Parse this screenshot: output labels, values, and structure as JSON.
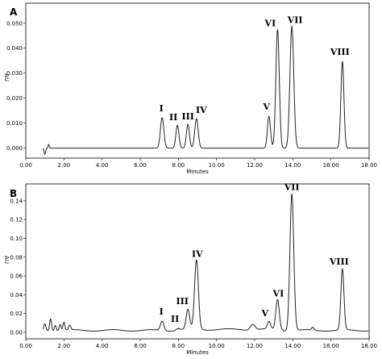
{
  "chart_data": [
    {
      "type": "line",
      "panel_label": "A",
      "xlabel": "Minutes",
      "ylabel": "AU",
      "xlim": [
        0,
        18
      ],
      "ylim": [
        -0.004,
        0.058
      ],
      "x_ticks": [
        0,
        2,
        4,
        6,
        8,
        10,
        12,
        14,
        16,
        18
      ],
      "x_tick_labels": [
        "0.00",
        "2.00",
        "4.00",
        "6.00",
        "8.00",
        "10.00",
        "12.00",
        "14.00",
        "16.00",
        "18.00"
      ],
      "y_ticks": [
        0,
        0.01,
        0.02,
        0.03,
        0.04,
        0.05
      ],
      "y_tick_labels": [
        "0.000",
        "0.010",
        "0.020",
        "0.030",
        "0.040",
        "0.050"
      ],
      "baseline": 0.0,
      "peaks": [
        {
          "label": "I",
          "x": 7.15,
          "y": 0.0122
        },
        {
          "label": "II",
          "x": 7.95,
          "y": 0.0092
        },
        {
          "label": "III",
          "x": 8.5,
          "y": 0.0095
        },
        {
          "label": "IV",
          "x": 8.95,
          "y": 0.0118
        },
        {
          "label": "V",
          "x": 12.75,
          "y": 0.0128
        },
        {
          "label": "VI",
          "x": 13.2,
          "y": 0.0475
        },
        {
          "label": "VII",
          "x": 13.95,
          "y": 0.0488
        },
        {
          "label": "VIII",
          "x": 16.6,
          "y": 0.0348
        }
      ]
    },
    {
      "type": "line",
      "panel_label": "B",
      "xlabel": "Minutes",
      "ylabel": "AU",
      "xlim": [
        0,
        18
      ],
      "ylim": [
        -0.007,
        0.158
      ],
      "x_ticks": [
        0,
        2,
        4,
        6,
        8,
        10,
        12,
        14,
        16,
        18
      ],
      "x_tick_labels": [
        "0.00",
        "2.00",
        "4.00",
        "6.00",
        "8.00",
        "10.00",
        "12.00",
        "14.00",
        "16.00",
        "18.00"
      ],
      "y_ticks": [
        0,
        0.02,
        0.04,
        0.06,
        0.08,
        0.1,
        0.12,
        0.14
      ],
      "y_tick_labels": [
        "0.00",
        "0.02",
        "0.04",
        "0.06",
        "0.08",
        "0.10",
        "0.12",
        "0.14"
      ],
      "baseline": 0.002,
      "peaks": [
        {
          "label": "I",
          "x": 7.15,
          "y": 0.012
        },
        {
          "label": "II",
          "x": 7.95,
          "y": 0.004
        },
        {
          "label": "III",
          "x": 8.5,
          "y": 0.023
        },
        {
          "label": "IV",
          "x": 8.95,
          "y": 0.076
        },
        {
          "label": "V",
          "x": 12.75,
          "y": 0.01
        },
        {
          "label": "VI",
          "x": 13.2,
          "y": 0.034
        },
        {
          "label": "VII",
          "x": 13.95,
          "y": 0.148
        },
        {
          "label": "VIII",
          "x": 16.6,
          "y": 0.067
        }
      ]
    }
  ]
}
